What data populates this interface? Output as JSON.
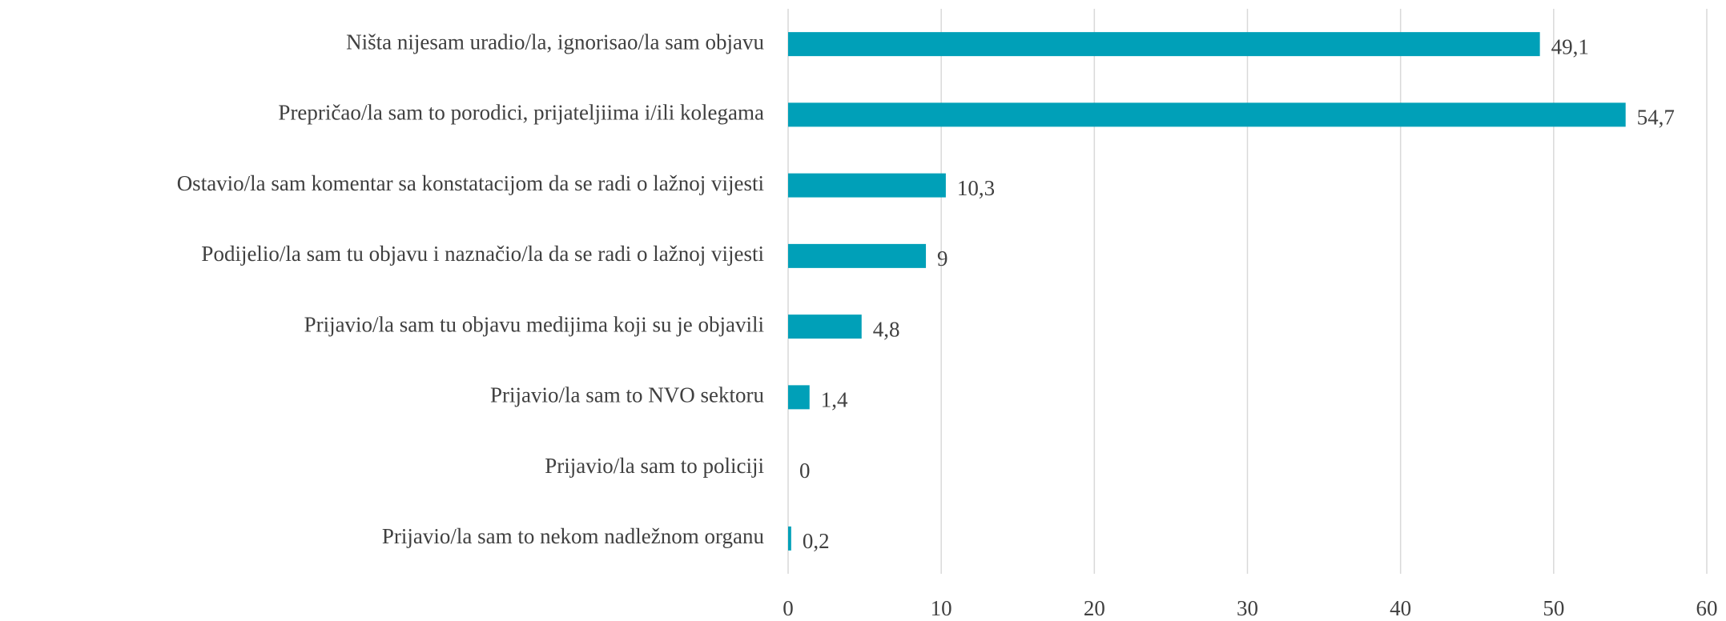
{
  "chart_data": {
    "type": "bar",
    "orientation": "horizontal",
    "categories": [
      "Ništa nijesam uradio/la, ignorisao/la sam objavu",
      "Prepričao/la sam to porodici, prijateljiima i/ili kolegama",
      "Ostavio/la sam komentar sa konstatacijom da se radi o lažnoj vijesti",
      "Podijelio/la sam tu objavu i naznačio/la da se radi o lažnoj vijesti",
      "Prijavio/la sam tu objavu medijima koji su je objavili",
      "Prijavio/la sam to NVO sektoru",
      "Prijavio/la sam to policiji",
      "Prijavio/la sam to nekom nadležnom organu"
    ],
    "values": [
      49.1,
      54.7,
      10.3,
      9,
      4.8,
      1.4,
      0,
      0.2
    ],
    "value_labels": [
      "49,1",
      "54,7",
      "10,3",
      "9",
      "4,8",
      "1,4",
      "0",
      "0,2"
    ],
    "color": "#00a0b8",
    "xlim": [
      0,
      60
    ],
    "xticks": [
      0,
      10,
      20,
      30,
      40,
      50,
      60
    ],
    "grid": true
  }
}
